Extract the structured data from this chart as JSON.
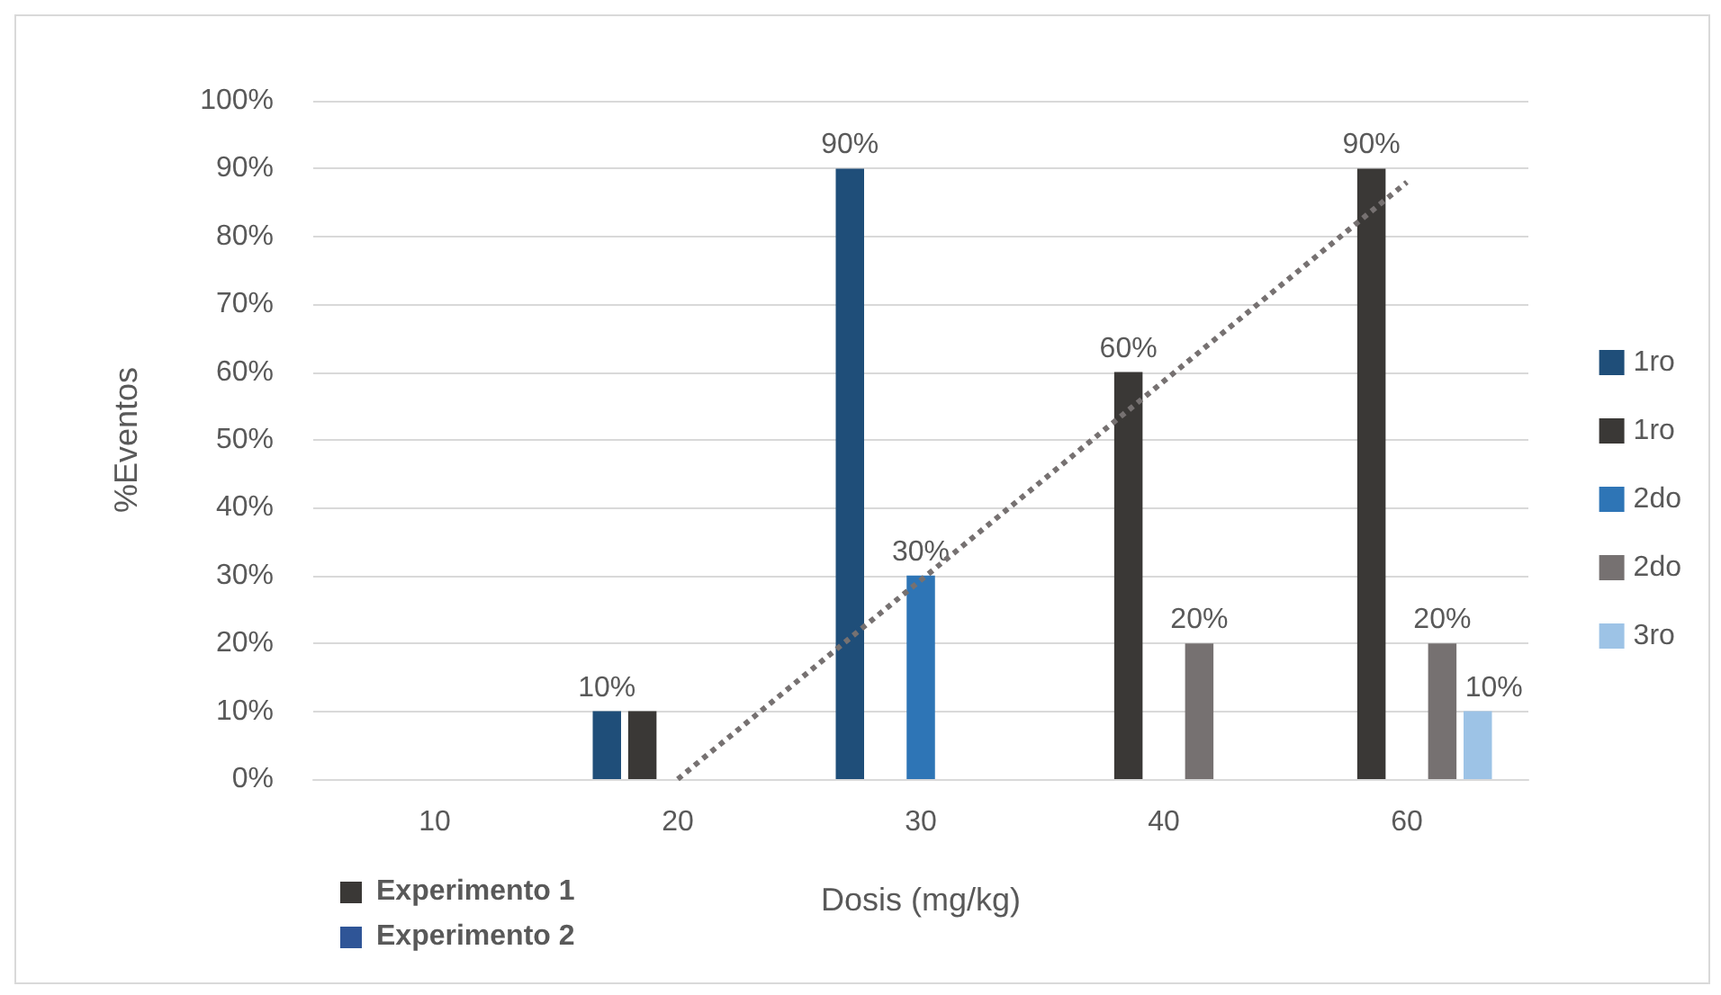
{
  "chart_data": {
    "type": "bar",
    "xlabel": "Dosis (mg/kg)",
    "ylabel": "%Eventos",
    "categories": [
      "10",
      "20",
      "30",
      "40",
      "60"
    ],
    "series": [
      {
        "name": "1ro",
        "color": "#1f4e79",
        "values": [
          null,
          10,
          90,
          null,
          null
        ],
        "value_labels": [
          null,
          "10%",
          "90%",
          null,
          null
        ]
      },
      {
        "name": "1ro",
        "color": "#3a3836",
        "values": [
          null,
          10,
          null,
          60,
          90
        ],
        "value_labels": [
          null,
          null,
          null,
          "60%",
          "90%"
        ]
      },
      {
        "name": "2do",
        "color": "#2e75b6",
        "values": [
          null,
          null,
          30,
          null,
          null
        ],
        "value_labels": [
          null,
          null,
          "30%",
          null,
          null
        ]
      },
      {
        "name": "2do",
        "color": "#767171",
        "values": [
          null,
          null,
          null,
          20,
          20
        ],
        "value_labels": [
          null,
          null,
          null,
          "20%",
          "20%"
        ]
      },
      {
        "name": "3ro",
        "color": "#9dc3e6",
        "values": [
          null,
          null,
          null,
          null,
          10
        ],
        "value_labels": [
          null,
          null,
          null,
          null,
          "10%"
        ]
      },
      {
        "type": "line",
        "color": "#767171",
        "line_style": "dotted",
        "marker": "none",
        "x": [
          "20",
          "60"
        ],
        "values": [
          0,
          88
        ]
      }
    ],
    "ylim": [
      0,
      100
    ],
    "yticks": [
      {
        "value": 0,
        "label": "0%"
      },
      {
        "value": 10,
        "label": "10%"
      },
      {
        "value": 20,
        "label": "20%"
      },
      {
        "value": 30,
        "label": "30%"
      },
      {
        "value": 40,
        "label": "40%"
      },
      {
        "value": 50,
        "label": "50%"
      },
      {
        "value": 60,
        "label": "60%"
      },
      {
        "value": 70,
        "label": "70%"
      },
      {
        "value": 80,
        "label": "80%"
      },
      {
        "value": 90,
        "label": "90%"
      },
      {
        "value": 100,
        "label": "100%"
      }
    ],
    "grid": "y",
    "legend": "right",
    "annotations": [
      "Experimento 1",
      "Experimento 2"
    ]
  }
}
